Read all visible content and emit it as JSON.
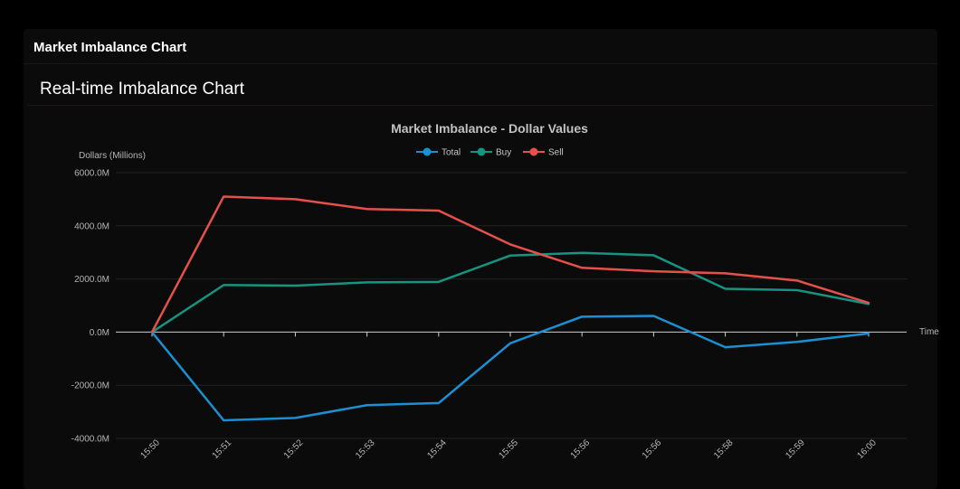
{
  "panel": {
    "title": "Market Imbalance Chart"
  },
  "card": {
    "title": "Real-time Imbalance Chart"
  },
  "chart_data": {
    "type": "line",
    "title": "Market Imbalance - Dollar Values",
    "xlabel": "Time",
    "ylabel": "Dollars (Millions)",
    "ylim": [
      -4000,
      6000
    ],
    "yticks": [
      6000,
      4000,
      2000,
      0,
      -2000,
      -4000
    ],
    "ytick_labels": [
      "6000.0M",
      "4000.0M",
      "2000.0M",
      "0.0M",
      "-2000.0M",
      "-4000.0M"
    ],
    "categories": [
      "15:50",
      "15:51",
      "15:52",
      "15:53",
      "15:54",
      "15:55",
      "15:56",
      "15:56",
      "15:58",
      "15:59",
      "16:00"
    ],
    "legend_position": "top-center",
    "grid": true,
    "series": [
      {
        "name": "Total",
        "color": "#1a8fd1",
        "values": [
          0,
          -3320,
          -3230,
          -2750,
          -2670,
          -420,
          580,
          610,
          -570,
          -370,
          -50
        ]
      },
      {
        "name": "Buy",
        "color": "#14957f",
        "values": [
          0,
          1770,
          1750,
          1870,
          1890,
          2880,
          2980,
          2890,
          1630,
          1580,
          1060
        ]
      },
      {
        "name": "Sell",
        "color": "#e5514a",
        "values": [
          0,
          5100,
          5000,
          4630,
          4570,
          3300,
          2420,
          2290,
          2210,
          1940,
          1100
        ]
      }
    ]
  }
}
